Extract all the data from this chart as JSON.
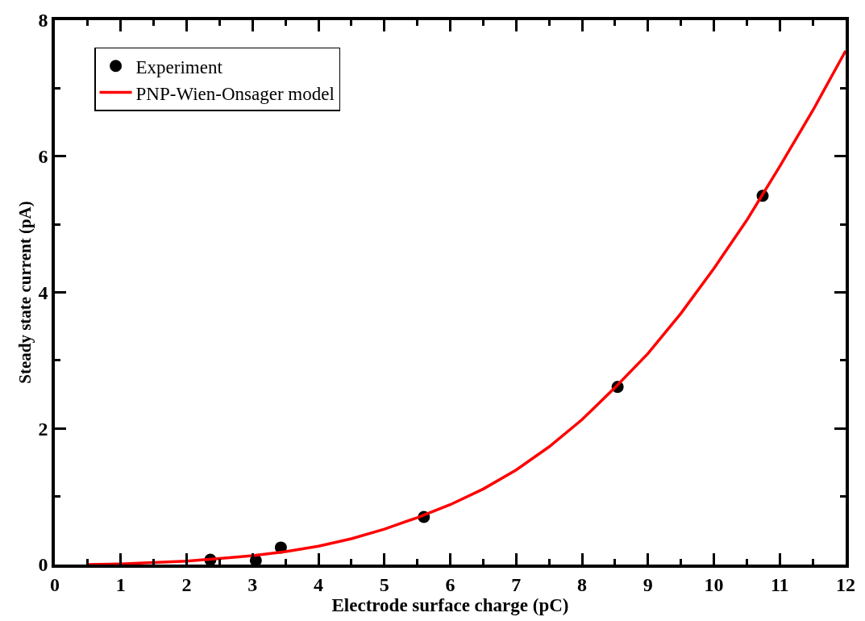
{
  "chart_data": {
    "type": "scatter",
    "xlabel": "Electrode surface charge (pC)",
    "ylabel": "Steady state current (pA)",
    "xlim": [
      0,
      12
    ],
    "xticks": [
      0,
      1,
      2,
      3,
      4,
      5,
      6,
      7,
      8,
      9,
      10,
      11,
      12
    ],
    "ylim": [
      0,
      8
    ],
    "yticks": [
      0,
      2,
      4,
      6,
      8
    ],
    "grid": false,
    "legend": "top left",
    "series": [
      {
        "name": "Experiment",
        "marker": "circle",
        "color": "#000000",
        "x": [
          2.36,
          3.05,
          3.43,
          5.6,
          8.54,
          10.74
        ],
        "values": [
          0.07,
          0.06,
          0.25,
          0.7,
          2.61,
          5.42
        ]
      },
      {
        "name": "PNP-Wien-Onsager model",
        "type": "line",
        "marker": "none",
        "line_style": "solid",
        "color": "#ff0000",
        "x": [
          0.5,
          1,
          1.5,
          2,
          2.5,
          3,
          3.5,
          4,
          4.5,
          5,
          5.5,
          6,
          6.5,
          7,
          7.5,
          8,
          8.5,
          9,
          9.5,
          10,
          10.5,
          11,
          11.5,
          12
        ],
        "values": [
          0,
          0.01,
          0.03,
          0.05,
          0.09,
          0.13,
          0.19,
          0.27,
          0.38,
          0.52,
          0.69,
          0.88,
          1.11,
          1.39,
          1.73,
          2.13,
          2.6,
          3.1,
          3.69,
          4.35,
          5.06,
          5.85,
          6.67,
          7.55
        ]
      }
    ]
  }
}
